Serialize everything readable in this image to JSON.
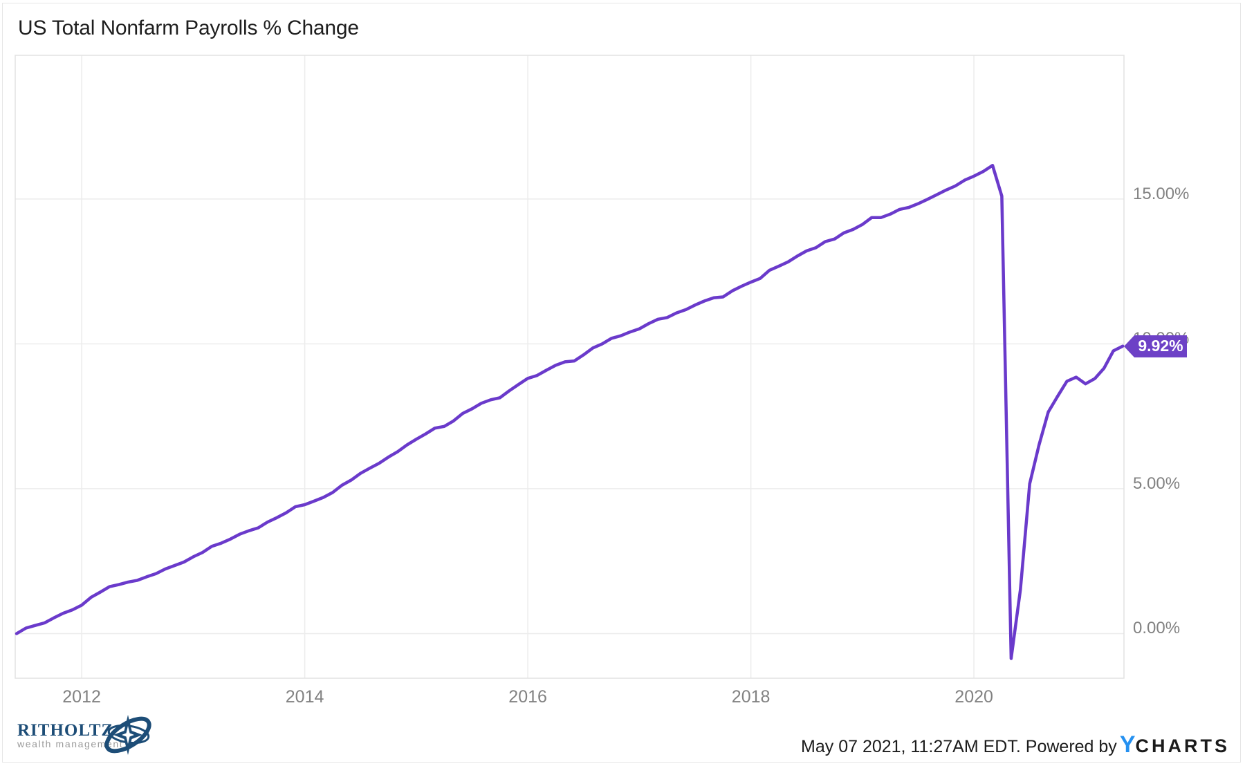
{
  "title": "US Total Nonfarm Payrolls % Change",
  "chart_data": {
    "type": "line",
    "title": "US Total Nonfarm Payrolls % Change",
    "series_name": "US Total Nonfarm Payrolls % Change",
    "unit": "%",
    "frequency": "monthly",
    "start_month": "2011-05",
    "values": [
      0.0,
      0.19,
      0.28,
      0.37,
      0.54,
      0.7,
      0.82,
      0.98,
      1.25,
      1.43,
      1.62,
      1.69,
      1.78,
      1.84,
      1.96,
      2.07,
      2.23,
      2.35,
      2.47,
      2.65,
      2.8,
      3.01,
      3.12,
      3.26,
      3.43,
      3.55,
      3.65,
      3.85,
      4.0,
      4.17,
      4.38,
      4.45,
      4.57,
      4.7,
      4.87,
      5.12,
      5.3,
      5.53,
      5.71,
      5.88,
      6.09,
      6.28,
      6.51,
      6.71,
      6.89,
      7.09,
      7.15,
      7.34,
      7.6,
      7.76,
      7.95,
      8.07,
      8.14,
      8.38,
      8.6,
      8.81,
      8.91,
      9.09,
      9.26,
      9.38,
      9.41,
      9.62,
      9.86,
      10.0,
      10.19,
      10.28,
      10.41,
      10.52,
      10.7,
      10.85,
      10.91,
      11.07,
      11.18,
      11.34,
      11.48,
      11.59,
      11.62,
      11.83,
      11.99,
      12.13,
      12.26,
      12.54,
      12.68,
      12.83,
      13.03,
      13.21,
      13.32,
      13.53,
      13.62,
      13.83,
      13.95,
      14.12,
      14.36,
      14.36,
      14.48,
      14.64,
      14.71,
      14.84,
      14.99,
      15.15,
      15.31,
      15.45,
      15.65,
      15.79,
      15.95,
      16.16,
      15.1,
      -0.86,
      1.52,
      5.17,
      6.51,
      7.65,
      8.19,
      8.71,
      8.85,
      8.62,
      8.8,
      9.16,
      9.76,
      9.92
    ],
    "last_value": 9.92,
    "last_value_label": "9.92%",
    "x_ticks": [
      2012,
      2014,
      2016,
      2018,
      2020
    ],
    "x_tick_labels": [
      "2012",
      "2014",
      "2016",
      "2018",
      "2020"
    ],
    "y_ticks": [
      {
        "value": 0,
        "label": "0.00%"
      },
      {
        "value": 5,
        "label": "5.00%"
      },
      {
        "value": 10,
        "label": "10.00%"
      },
      {
        "value": 15,
        "label": "15.00%"
      }
    ],
    "x_domain_years": [
      2011.404,
      2021.345
    ],
    "y_domain": [
      -1.54,
      19.96
    ],
    "grid": true,
    "legend_position": "none",
    "line_color": "#6a3acb",
    "badge_color": "#6d41c6"
  },
  "footer": {
    "timestamp": "May 07 2021, 11:27AM EDT.",
    "powered_by": "Powered by",
    "ycharts_y": "Y",
    "ycharts_rest": "CHARTS"
  },
  "branding": {
    "ritholtz_name": "RITHOLTZ",
    "ritholtz_sub": "wealth management"
  },
  "colors": {
    "grid": "#ececec",
    "plot_border": "#e2e2e2",
    "tick_label": "#828282",
    "title_text": "#1e1e1e",
    "ycharts_blue": "#2490f0",
    "ritholtz_navy": "#1d4d77",
    "ritholtz_gray": "#9a9a9a"
  }
}
